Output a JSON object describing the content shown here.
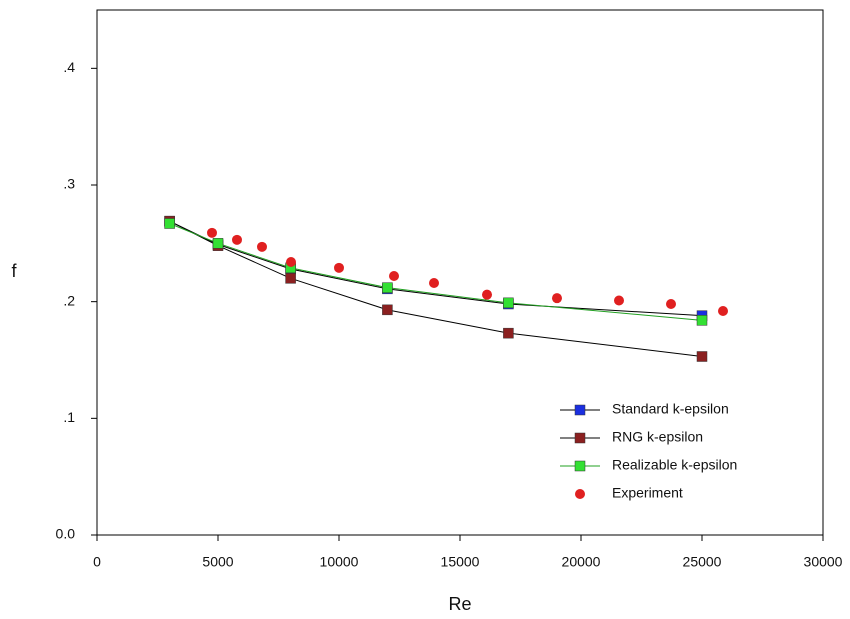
{
  "chart_data": {
    "type": "line",
    "x_label": "Re",
    "y_label": "f",
    "xlim": [
      0,
      30000
    ],
    "xticks": [
      0,
      5000,
      10000,
      15000,
      20000,
      25000,
      30000
    ],
    "ylim": [
      0,
      0.45
    ],
    "yticks": [
      {
        "value": 0,
        "label": "0.0"
      },
      {
        "value": 0.1,
        "label": ".1"
      },
      {
        "value": 0.2,
        "label": ".2"
      },
      {
        "value": 0.3,
        "label": ".3"
      },
      {
        "value": 0.4,
        "label": ".4"
      }
    ],
    "legend": "lower right",
    "series": [
      {
        "name": "Standard k-epsilon",
        "color": "#1a2fe0",
        "line_color": "#000000",
        "line": true,
        "marker": "square",
        "x": [
          3000,
          5000,
          8000,
          12000,
          17000,
          25000
        ],
        "values": [
          0.269,
          0.249,
          0.228,
          0.211,
          0.198,
          0.188
        ]
      },
      {
        "name": "RNG k-epsilon",
        "color": "#8b2020",
        "line_color": "#000000",
        "line": true,
        "marker": "square",
        "x": [
          3000,
          5000,
          8000,
          12000,
          17000,
          25000
        ],
        "values": [
          0.269,
          0.248,
          0.22,
          0.193,
          0.173,
          0.153
        ]
      },
      {
        "name": "Realizable k-epsilon",
        "color": "#33e033",
        "line_color": "#22a022",
        "line": true,
        "marker": "square",
        "x": [
          3000,
          5000,
          8000,
          12000,
          17000,
          25000
        ],
        "values": [
          0.267,
          0.25,
          0.229,
          0.212,
          0.199,
          0.184
        ]
      },
      {
        "name": "Experiment",
        "color": "#e02020",
        "line": false,
        "marker": "circle",
        "x": [
          4752,
          5785,
          6818,
          8017,
          10000,
          12273,
          13926,
          16116,
          19008,
          21570,
          23719,
          25868
        ],
        "values": [
          0.259,
          0.253,
          0.247,
          0.234,
          0.229,
          0.222,
          0.216,
          0.206,
          0.203,
          0.201,
          0.198,
          0.192
        ]
      }
    ]
  }
}
